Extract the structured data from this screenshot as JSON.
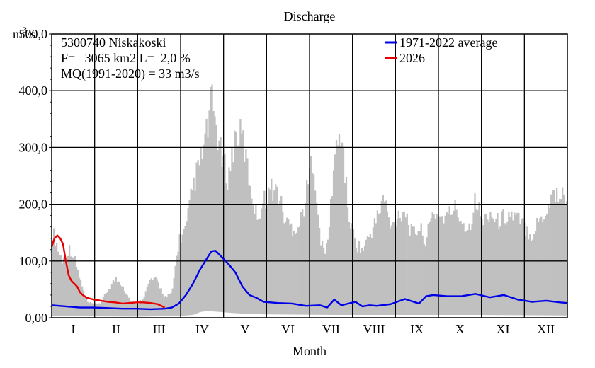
{
  "chart_data": {
    "type": "area",
    "title": "Discharge",
    "ylabel_base": "m",
    "ylabel_sup": "3",
    "ylabel_tail": "/s",
    "xlabel": "Month",
    "ylim": [
      0,
      500
    ],
    "y_ticks": [
      "0,00",
      "100,0",
      "200,0",
      "300,0",
      "400,0",
      "500,0"
    ],
    "categories": [
      "I",
      "II",
      "III",
      "IV",
      "V",
      "VI",
      "VII",
      "VIII",
      "IX",
      "X",
      "XI",
      "XII"
    ],
    "grid": true,
    "legend_position": "top-right",
    "info_lines": [
      "5300740 Niskakoski",
      "F=   3065 km2 L=  2,0 %",
      "MQ(1991-2020) = 33 m3/s"
    ],
    "colors": {
      "average": "#0000e6",
      "current": "#e60000",
      "range": "#c0c0c0"
    },
    "range_max": {
      "x": [
        0,
        3,
        5,
        8,
        10,
        13,
        16,
        20,
        22,
        25,
        30,
        35,
        40,
        45,
        50,
        55,
        60,
        65,
        70,
        75,
        80,
        85,
        90,
        95,
        100,
        105,
        110,
        113,
        116,
        120,
        125,
        130,
        135,
        140,
        145,
        150,
        155,
        160,
        165,
        170,
        175,
        180,
        185,
        190,
        195,
        200,
        205,
        210,
        215,
        220,
        225,
        230,
        235,
        240,
        245,
        250,
        255,
        260,
        265,
        270,
        275,
        280,
        285,
        290,
        295,
        300,
        305,
        310,
        315,
        320,
        325,
        330,
        335,
        340,
        345,
        350,
        355,
        360,
        365
      ],
      "y": [
        170,
        150,
        125,
        110,
        120,
        135,
        115,
        75,
        55,
        30,
        25,
        30,
        55,
        75,
        65,
        35,
        25,
        40,
        75,
        70,
        40,
        45,
        150,
        170,
        255,
        300,
        360,
        420,
        380,
        310,
        270,
        355,
        350,
        265,
        195,
        225,
        250,
        245,
        190,
        175,
        175,
        235,
        320,
        145,
        130,
        305,
        365,
        200,
        145,
        130,
        160,
        190,
        235,
        170,
        200,
        210,
        160,
        175,
        150,
        205,
        195,
        195,
        215,
        190,
        170,
        230,
        185,
        205,
        185,
        195,
        200,
        190,
        175,
        160,
        190,
        205,
        245,
        235,
        240
      ]
    },
    "range_min": {
      "x": [
        0,
        60,
        90,
        100,
        105,
        110,
        120,
        130,
        150,
        200,
        300,
        365
      ],
      "y": [
        3,
        2,
        3,
        5,
        10,
        12,
        10,
        8,
        6,
        5,
        5,
        4
      ]
    },
    "series": [
      {
        "name": "1971-2022 average",
        "x": [
          0,
          10,
          20,
          30,
          40,
          50,
          60,
          70,
          80,
          85,
          90,
          95,
          100,
          105,
          110,
          113,
          116,
          120,
          125,
          130,
          135,
          140,
          145,
          150,
          155,
          160,
          170,
          180,
          190,
          195,
          200,
          205,
          210,
          215,
          220,
          225,
          230,
          240,
          250,
          260,
          265,
          270,
          280,
          290,
          300,
          310,
          320,
          330,
          340,
          350,
          360,
          365
        ],
        "y": [
          22,
          20,
          18,
          18,
          17,
          16,
          16,
          15,
          16,
          18,
          25,
          40,
          60,
          85,
          105,
          117,
          118,
          108,
          95,
          80,
          55,
          40,
          35,
          28,
          27,
          26,
          25,
          21,
          22,
          18,
          32,
          22,
          25,
          28,
          20,
          22,
          21,
          24,
          33,
          25,
          38,
          40,
          38,
          38,
          42,
          36,
          40,
          32,
          28,
          30,
          27,
          26
        ]
      },
      {
        "name": "2026",
        "x": [
          0,
          2,
          4,
          6,
          8,
          10,
          12,
          14,
          16,
          18,
          20,
          22,
          25,
          30,
          35,
          40,
          45,
          50,
          55,
          60,
          65,
          70,
          75,
          80
        ],
        "y": [
          125,
          140,
          145,
          140,
          130,
          100,
          75,
          65,
          60,
          55,
          45,
          40,
          35,
          32,
          30,
          28,
          27,
          25,
          26,
          27,
          27,
          26,
          24,
          18
        ]
      }
    ]
  }
}
